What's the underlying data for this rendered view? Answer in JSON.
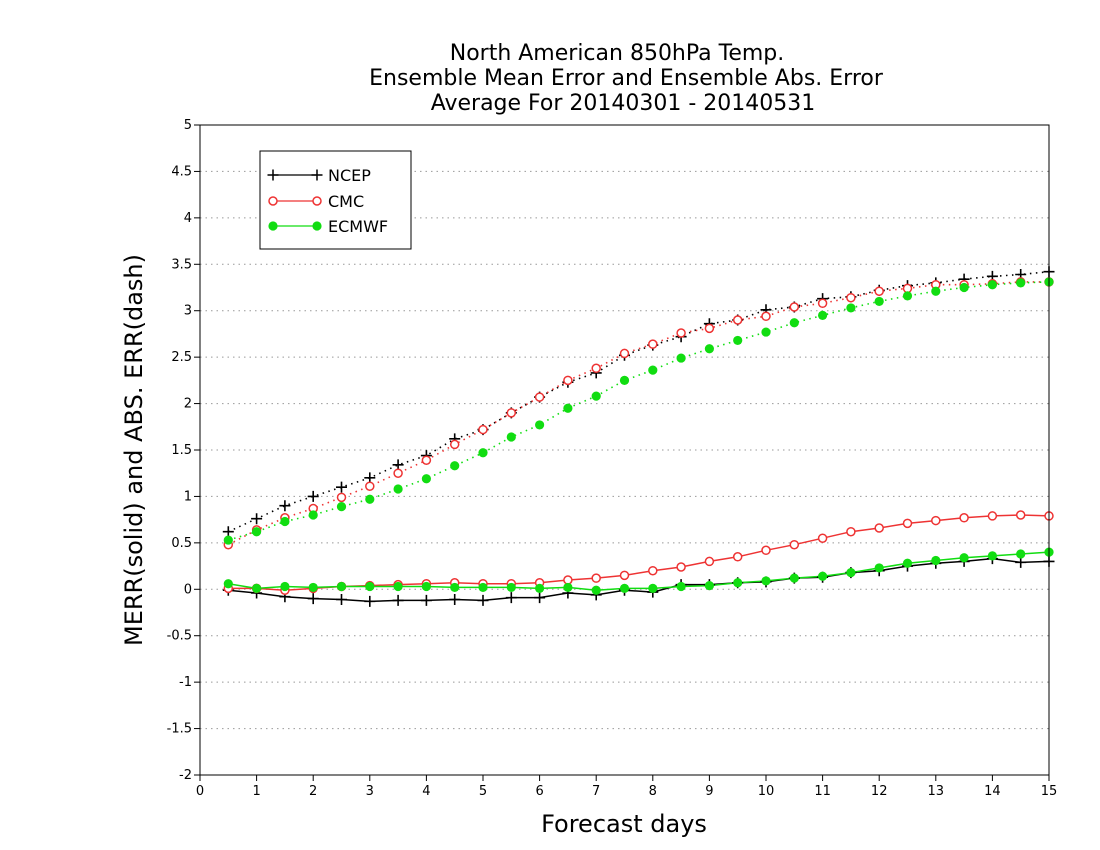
{
  "chart_data": {
    "type": "line",
    "title_lines": [
      "North American 850hPa Temp.",
      "Ensemble Mean Error and Ensemble Abs. Error",
      "Average For 20140301 - 20140531"
    ],
    "xlabel": "Forecast days",
    "ylabel": "MERR(solid) and ABS. ERR(dash)",
    "xlim": [
      0,
      15
    ],
    "ylim": [
      -2,
      5
    ],
    "xticks": [
      "0",
      "1",
      "2",
      "3",
      "4",
      "5",
      "6",
      "7",
      "8",
      "9",
      "10",
      "11",
      "12",
      "13",
      "14",
      "15"
    ],
    "yticks": [
      "-2",
      "-1.5",
      "-1",
      "-0.5",
      "0",
      "0.5",
      "1",
      "1.5",
      "2",
      "2.5",
      "3",
      "3.5",
      "4",
      "4.5",
      "5"
    ],
    "grid": "horizontal dotted",
    "legend_position": "top-left",
    "x": [
      0.5,
      1,
      1.5,
      2,
      2.5,
      3,
      3.5,
      4,
      4.5,
      5,
      5.5,
      6,
      6.5,
      7,
      7.5,
      8,
      8.5,
      9,
      9.5,
      10,
      10.5,
      11,
      11.5,
      12,
      12.5,
      13,
      13.5,
      14,
      14.5,
      15
    ],
    "series": [
      {
        "name": "NCEP",
        "color": "#000000",
        "marker": "plus",
        "merr": [
          -0.01,
          -0.04,
          -0.08,
          -0.1,
          -0.11,
          -0.13,
          -0.12,
          -0.12,
          -0.11,
          -0.12,
          -0.09,
          -0.09,
          -0.04,
          -0.06,
          -0.01,
          -0.03,
          0.05,
          0.05,
          0.07,
          0.08,
          0.12,
          0.13,
          0.18,
          0.2,
          0.25,
          0.28,
          0.3,
          0.33,
          0.29,
          0.3
        ],
        "abs_err": [
          0.62,
          0.76,
          0.9,
          1.0,
          1.1,
          1.2,
          1.34,
          1.44,
          1.62,
          1.72,
          1.9,
          2.07,
          2.23,
          2.33,
          2.52,
          2.63,
          2.72,
          2.86,
          2.9,
          3.01,
          3.04,
          3.13,
          3.15,
          3.22,
          3.27,
          3.3,
          3.34,
          3.37,
          3.39,
          3.42
        ]
      },
      {
        "name": "CMC",
        "color": "#ee3333",
        "marker": "open-circle",
        "merr": [
          0.01,
          0.01,
          -0.01,
          0.01,
          0.03,
          0.04,
          0.05,
          0.06,
          0.07,
          0.06,
          0.06,
          0.07,
          0.1,
          0.12,
          0.15,
          0.2,
          0.24,
          0.3,
          0.35,
          0.42,
          0.48,
          0.55,
          0.62,
          0.66,
          0.71,
          0.74,
          0.77,
          0.79,
          0.8,
          0.79
        ],
        "abs_err": [
          0.48,
          0.64,
          0.77,
          0.87,
          0.99,
          1.11,
          1.25,
          1.39,
          1.56,
          1.72,
          1.9,
          2.07,
          2.25,
          2.38,
          2.54,
          2.64,
          2.76,
          2.81,
          2.9,
          2.94,
          3.04,
          3.08,
          3.14,
          3.21,
          3.24,
          3.28,
          3.28,
          3.29,
          3.31,
          3.31
        ]
      },
      {
        "name": "ECMWF",
        "color": "#11dd11",
        "marker": "filled-circle",
        "merr": [
          0.06,
          0.01,
          0.03,
          0.02,
          0.03,
          0.03,
          0.03,
          0.03,
          0.02,
          0.02,
          0.02,
          0.01,
          0.02,
          -0.01,
          0.01,
          0.01,
          0.03,
          0.04,
          0.07,
          0.09,
          0.12,
          0.14,
          0.18,
          0.23,
          0.28,
          0.31,
          0.34,
          0.36,
          0.38,
          0.4
        ],
        "abs_err": [
          0.53,
          0.62,
          0.73,
          0.8,
          0.89,
          0.97,
          1.08,
          1.19,
          1.33,
          1.47,
          1.64,
          1.77,
          1.95,
          2.08,
          2.25,
          2.36,
          2.49,
          2.59,
          2.68,
          2.77,
          2.87,
          2.95,
          3.03,
          3.1,
          3.16,
          3.21,
          3.25,
          3.28,
          3.3,
          3.31
        ]
      }
    ]
  }
}
